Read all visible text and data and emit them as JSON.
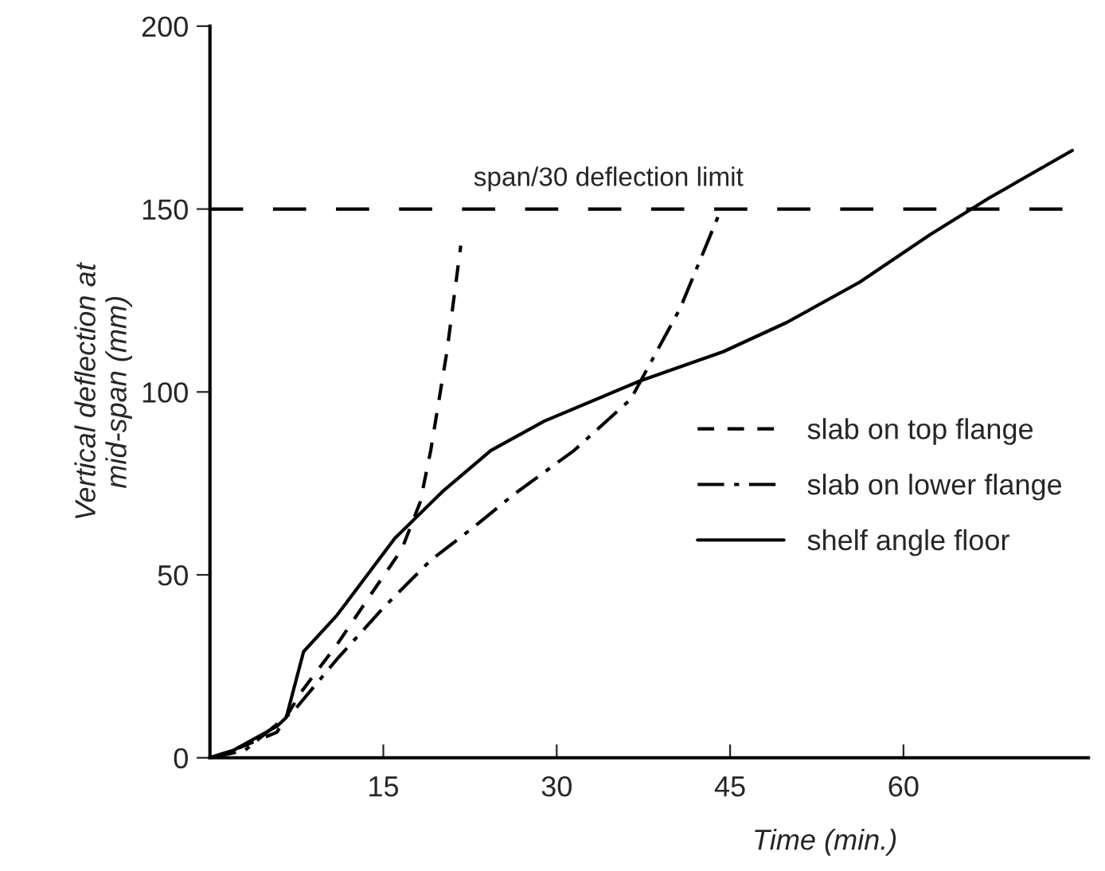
{
  "chart_data": {
    "type": "line",
    "xlabel": "Time (min.)",
    "ylabel": "Vertical deflection at\nmid-span (mm)",
    "xlim": [
      0,
      76
    ],
    "xticks": [
      15,
      30,
      45,
      60
    ],
    "ylim": [
      0,
      200
    ],
    "yticks": [
      0,
      50,
      100,
      150,
      200
    ],
    "grid": false,
    "legend": "right",
    "marker": "none",
    "ref_lines": [
      {
        "axis": "y",
        "value": 150,
        "label": "span/30 deflection limit",
        "line_style": "dashed",
        "color": "#000000"
      }
    ],
    "series": [
      {
        "name": "slab on top flange",
        "color": "#000000",
        "line_style": "dashed",
        "x": [
          0,
          2,
          5.8,
          7.9,
          11,
          14,
          16.6,
          18.2,
          19.1,
          20.5,
          21.7
        ],
        "values": [
          0,
          2,
          7,
          18,
          31,
          45,
          57,
          70,
          84,
          111,
          140
        ]
      },
      {
        "name": "slab on lower flange",
        "color": "#000000",
        "line_style": "dashdot",
        "x": [
          0,
          3,
          7.3,
          11,
          15,
          19.1,
          22.8,
          26.3,
          31.5,
          36.4,
          40.7,
          44.1
        ],
        "values": [
          0,
          2,
          13,
          27,
          41,
          54,
          63,
          72,
          84,
          98,
          123,
          149
        ]
      },
      {
        "name": "shelf angle floor",
        "color": "#000000",
        "line_style": "solid",
        "x": [
          0,
          2,
          5.8,
          6.6,
          8.1,
          11,
          16,
          20.2,
          24.3,
          28.9,
          37.2,
          44.4,
          49.9,
          56.2,
          62.3,
          67.4,
          74.6
        ],
        "values": [
          0,
          2,
          8.6,
          11,
          29,
          39,
          60,
          73,
          84,
          92,
          103,
          111,
          119,
          130,
          143,
          153,
          166
        ]
      }
    ]
  }
}
